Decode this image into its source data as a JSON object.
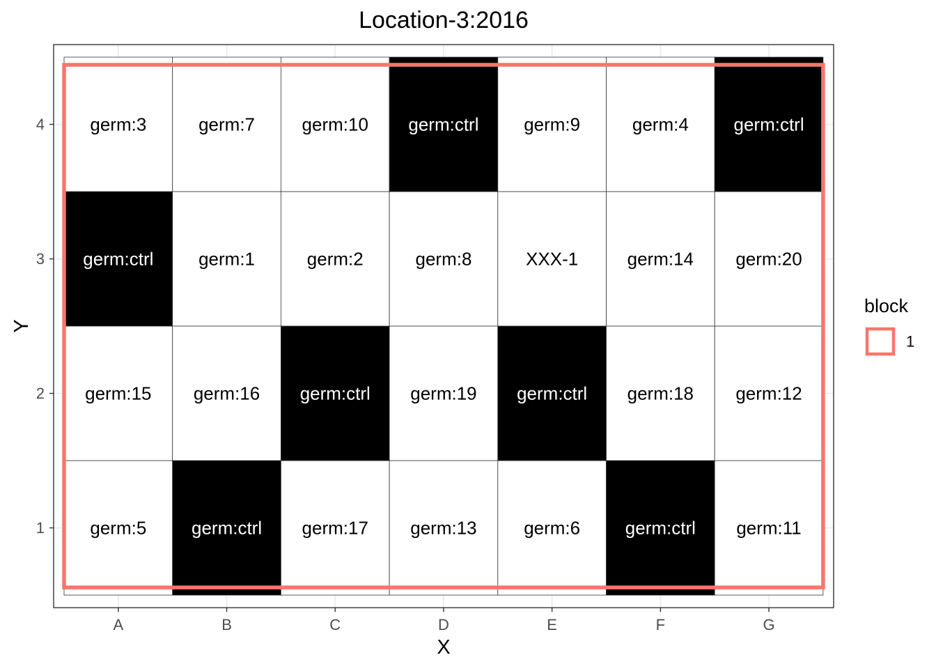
{
  "chart_data": {
    "type": "heatmap",
    "title": "Location-3:2016",
    "xlabel": "X",
    "ylabel": "Y",
    "x_categories": [
      "A",
      "B",
      "C",
      "D",
      "E",
      "F",
      "G"
    ],
    "y_categories": [
      "1",
      "2",
      "3",
      "4"
    ],
    "grid": true,
    "cells": [
      {
        "x": "A",
        "y": "4",
        "label": "germ:3",
        "control": false
      },
      {
        "x": "B",
        "y": "4",
        "label": "germ:7",
        "control": false
      },
      {
        "x": "C",
        "y": "4",
        "label": "germ:10",
        "control": false
      },
      {
        "x": "D",
        "y": "4",
        "label": "germ:ctrl",
        "control": true
      },
      {
        "x": "E",
        "y": "4",
        "label": "germ:9",
        "control": false
      },
      {
        "x": "F",
        "y": "4",
        "label": "germ:4",
        "control": false
      },
      {
        "x": "G",
        "y": "4",
        "label": "germ:ctrl",
        "control": true
      },
      {
        "x": "A",
        "y": "3",
        "label": "germ:ctrl",
        "control": true
      },
      {
        "x": "B",
        "y": "3",
        "label": "germ:1",
        "control": false
      },
      {
        "x": "C",
        "y": "3",
        "label": "germ:2",
        "control": false
      },
      {
        "x": "D",
        "y": "3",
        "label": "germ:8",
        "control": false
      },
      {
        "x": "E",
        "y": "3",
        "label": "XXX-1",
        "control": false
      },
      {
        "x": "F",
        "y": "3",
        "label": "germ:14",
        "control": false
      },
      {
        "x": "G",
        "y": "3",
        "label": "germ:20",
        "control": false
      },
      {
        "x": "A",
        "y": "2",
        "label": "germ:15",
        "control": false
      },
      {
        "x": "B",
        "y": "2",
        "label": "germ:16",
        "control": false
      },
      {
        "x": "C",
        "y": "2",
        "label": "germ:ctrl",
        "control": true
      },
      {
        "x": "D",
        "y": "2",
        "label": "germ:19",
        "control": false
      },
      {
        "x": "E",
        "y": "2",
        "label": "germ:ctrl",
        "control": true
      },
      {
        "x": "F",
        "y": "2",
        "label": "germ:18",
        "control": false
      },
      {
        "x": "G",
        "y": "2",
        "label": "germ:12",
        "control": false
      },
      {
        "x": "A",
        "y": "1",
        "label": "germ:5",
        "control": false
      },
      {
        "x": "B",
        "y": "1",
        "label": "germ:ctrl",
        "control": true
      },
      {
        "x": "C",
        "y": "1",
        "label": "germ:17",
        "control": false
      },
      {
        "x": "D",
        "y": "1",
        "label": "germ:13",
        "control": false
      },
      {
        "x": "E",
        "y": "1",
        "label": "germ:6",
        "control": false
      },
      {
        "x": "F",
        "y": "1",
        "label": "germ:ctrl",
        "control": true
      },
      {
        "x": "G",
        "y": "1",
        "label": "germ:11",
        "control": false
      }
    ],
    "blocks": [
      {
        "name": "1",
        "x_range": [
          "A",
          "G"
        ],
        "y_range": [
          "1",
          "4"
        ],
        "color": "#F8766D"
      }
    ],
    "legend": {
      "title": "block",
      "position": "right",
      "entries": [
        {
          "label": "1",
          "color": "#F8766D"
        }
      ]
    },
    "colors": {
      "control_fill": "#000000",
      "entry_fill": "#FFFFFF",
      "control_text": "#FFFFFF",
      "entry_text": "#000000",
      "cell_border": "#333333",
      "panel_border": "#333333",
      "gridline": "#EBEBEB"
    }
  }
}
